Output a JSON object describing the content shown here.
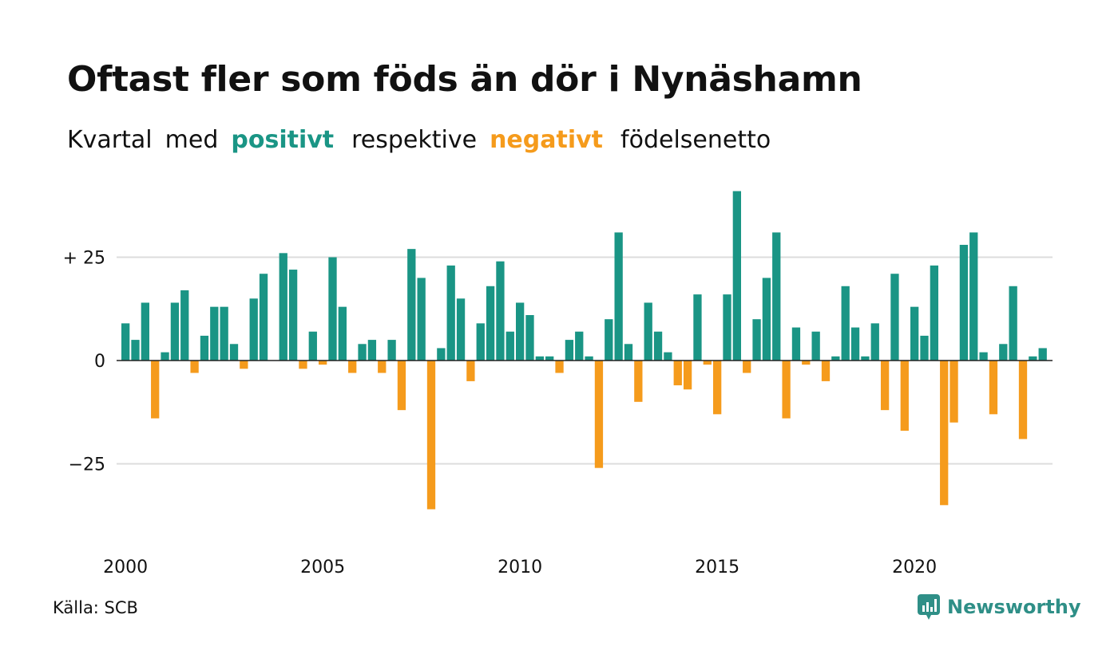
{
  "title": "Oftast fler som föds än dör i Nynäshamn",
  "subtitle": {
    "part1": "Kvartal",
    "part2": "med",
    "positive": "positivt",
    "part3": "respektive",
    "negative": "negativt",
    "part4": "födelsenetto"
  },
  "source": "Källa: SCB",
  "brand": {
    "name": "Newsworthy",
    "icon": "newsworthy-logo-icon"
  },
  "colors": {
    "positive": "#1a9585",
    "negative": "#f59b1c",
    "grid": "#dddddd",
    "baseline": "#222222"
  },
  "chart_data": {
    "type": "bar",
    "x_start": "2000 Q1",
    "x_tick_labels": [
      "2000",
      "2005",
      "2010",
      "2015",
      "2020"
    ],
    "y_tick_labels": [
      "+ 25",
      "0",
      "−25"
    ],
    "y_ticks": [
      25,
      0,
      -25
    ],
    "ylim": [
      -38,
      41
    ],
    "grid": true,
    "values": [
      9,
      5,
      14,
      -14,
      2,
      14,
      17,
      -3,
      6,
      13,
      13,
      4,
      -2,
      15,
      21,
      0,
      26,
      22,
      -2,
      7,
      -1,
      25,
      13,
      -3,
      4,
      5,
      -3,
      5,
      -12,
      27,
      20,
      -36,
      3,
      23,
      15,
      -5,
      9,
      18,
      24,
      7,
      14,
      11,
      1,
      1,
      -3,
      5,
      7,
      1,
      -26,
      10,
      31,
      4,
      -10,
      14,
      7,
      2,
      -6,
      -7,
      16,
      -1,
      -13,
      16,
      41,
      -3,
      10,
      20,
      31,
      -14,
      8,
      -1,
      7,
      -5,
      1,
      18,
      8,
      1,
      9,
      -12,
      21,
      -17,
      13,
      6,
      23,
      -35,
      -15,
      28,
      31,
      2,
      -13,
      4,
      18,
      -19,
      1,
      3
    ]
  }
}
